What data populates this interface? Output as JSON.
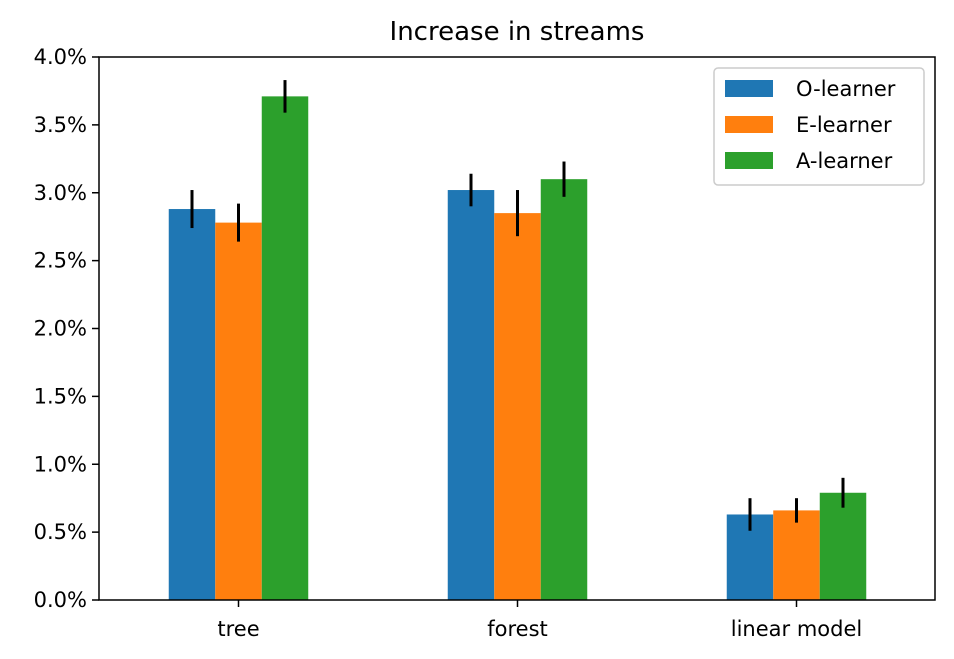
{
  "chart_data": {
    "type": "bar",
    "title": "Increase in streams",
    "xlabel": "",
    "ylabel": "",
    "categories": [
      "tree",
      "forest",
      "linear model"
    ],
    "series": [
      {
        "name": "O-learner",
        "color": "#1f77b4",
        "values": [
          2.88,
          3.02,
          0.63
        ],
        "errors": [
          0.14,
          0.12,
          0.12
        ]
      },
      {
        "name": "E-learner",
        "color": "#ff7f0e",
        "values": [
          2.78,
          2.85,
          0.66
        ],
        "errors": [
          0.14,
          0.17,
          0.09
        ]
      },
      {
        "name": "A-learner",
        "color": "#2ca02c",
        "values": [
          3.71,
          3.1,
          0.79
        ],
        "errors": [
          0.12,
          0.13,
          0.11
        ]
      }
    ],
    "ylim": [
      0,
      4.0
    ],
    "yticks": [
      0.0,
      0.5,
      1.0,
      1.5,
      2.0,
      2.5,
      3.0,
      3.5,
      4.0
    ],
    "ytick_labels": [
      "0.0%",
      "0.5%",
      "1.0%",
      "1.5%",
      "2.0%",
      "2.5%",
      "3.0%",
      "3.5%",
      "4.0%"
    ],
    "grid": false,
    "legend_position": "top-right"
  }
}
